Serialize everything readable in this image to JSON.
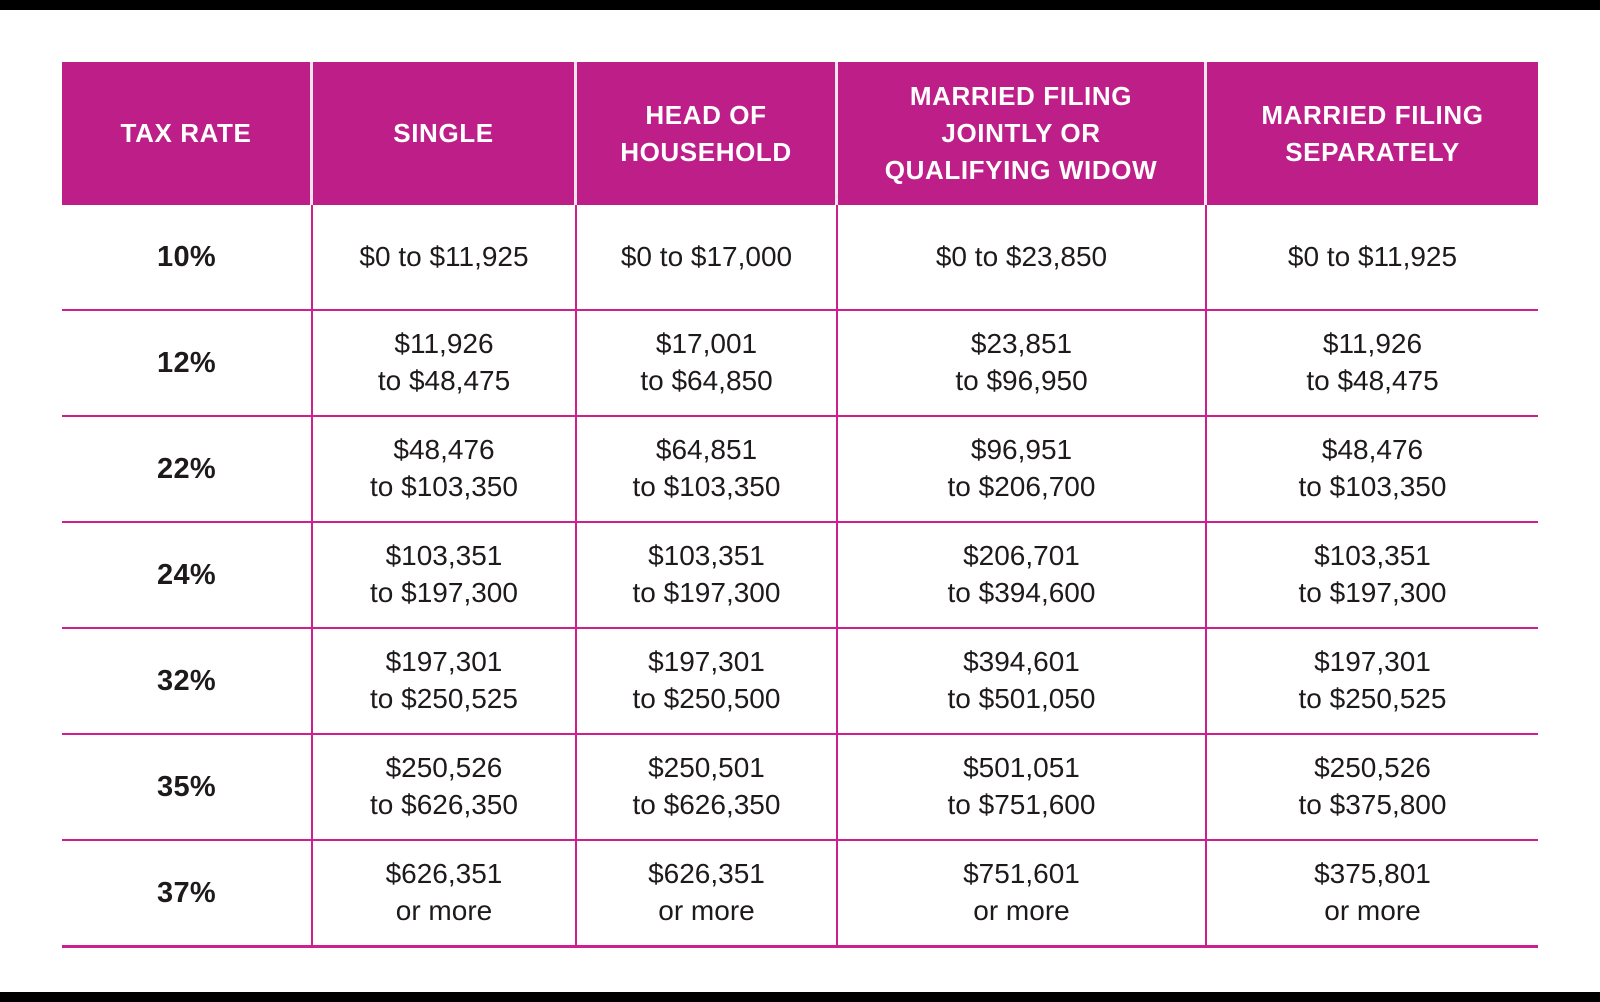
{
  "frame": {
    "bar_color": "#000000"
  },
  "table": {
    "header_bg": "#be1e88",
    "header_text_color": "#ffffff",
    "grid_line_color": "#ce1f8f",
    "header_separator_color": "#f2e3ed",
    "body_text_color": "#1e1a1b",
    "columns": [
      {
        "id": "tax-rate",
        "label": "TAX RATE"
      },
      {
        "id": "single",
        "label": "SINGLE"
      },
      {
        "id": "head-of-household",
        "label": "HEAD OF\nHOUSEHOLD"
      },
      {
        "id": "married-filing-jointly",
        "label": "MARRIED FILING\nJOINTLY OR\nQUALIFYING WIDOW"
      },
      {
        "id": "married-filing-separately",
        "label": "MARRIED FILING\nSEPARATELY"
      }
    ],
    "rows": [
      {
        "rate": "10%",
        "cells": [
          "$0 to $11,925",
          "$0 to $17,000",
          "$0 to $23,850",
          "$0 to $11,925"
        ]
      },
      {
        "rate": "12%",
        "cells": [
          "$11,926\nto $48,475",
          "$17,001\nto $64,850",
          "$23,851\nto $96,950",
          "$11,926\nto $48,475"
        ]
      },
      {
        "rate": "22%",
        "cells": [
          "$48,476\nto $103,350",
          "$64,851\nto $103,350",
          "$96,951\nto $206,700",
          "$48,476\nto $103,350"
        ]
      },
      {
        "rate": "24%",
        "cells": [
          "$103,351\nto $197,300",
          "$103,351\nto $197,300",
          "$206,701\nto $394,600",
          "$103,351\nto $197,300"
        ]
      },
      {
        "rate": "32%",
        "cells": [
          "$197,301\nto $250,525",
          "$197,301\nto $250,500",
          "$394,601\nto $501,050",
          "$197,301\nto $250,525"
        ]
      },
      {
        "rate": "35%",
        "cells": [
          "$250,526\nto $626,350",
          "$250,501\nto $626,350",
          "$501,051\nto $751,600",
          "$250,526\nto $375,800"
        ]
      },
      {
        "rate": "37%",
        "cells": [
          "$626,351\nor more",
          "$626,351\nor more",
          "$751,601\nor more",
          "$375,801\nor more"
        ]
      }
    ]
  },
  "chart_data": {
    "type": "table",
    "columns": [
      "TAX RATE",
      "SINGLE",
      "HEAD OF HOUSEHOLD",
      "MARRIED FILING JOINTLY OR QUALIFYING WIDOW",
      "MARRIED FILING SEPARATELY"
    ],
    "rows": [
      [
        "10%",
        "$0 to $11,925",
        "$0 to $17,000",
        "$0 to $23,850",
        "$0 to $11,925"
      ],
      [
        "12%",
        "$11,926 to $48,475",
        "$17,001 to $64,850",
        "$23,851 to $96,950",
        "$11,926 to $48,475"
      ],
      [
        "22%",
        "$48,476 to $103,350",
        "$64,851 to $103,350",
        "$96,951 to $206,700",
        "$48,476 to $103,350"
      ],
      [
        "24%",
        "$103,351 to $197,300",
        "$103,351 to $197,300",
        "$206,701 to $394,600",
        "$103,351 to $197,300"
      ],
      [
        "32%",
        "$197,301 to $250,525",
        "$197,301 to $250,500",
        "$394,601 to $501,050",
        "$197,301 to $250,525"
      ],
      [
        "35%",
        "$250,526 to $626,350",
        "$250,501 to $626,350",
        "$501,051 to $751,600",
        "$250,526 to $375,800"
      ],
      [
        "37%",
        "$626,351 or more",
        "$626,351 or more",
        "$751,601 or more",
        "$375,801 or more"
      ]
    ]
  }
}
